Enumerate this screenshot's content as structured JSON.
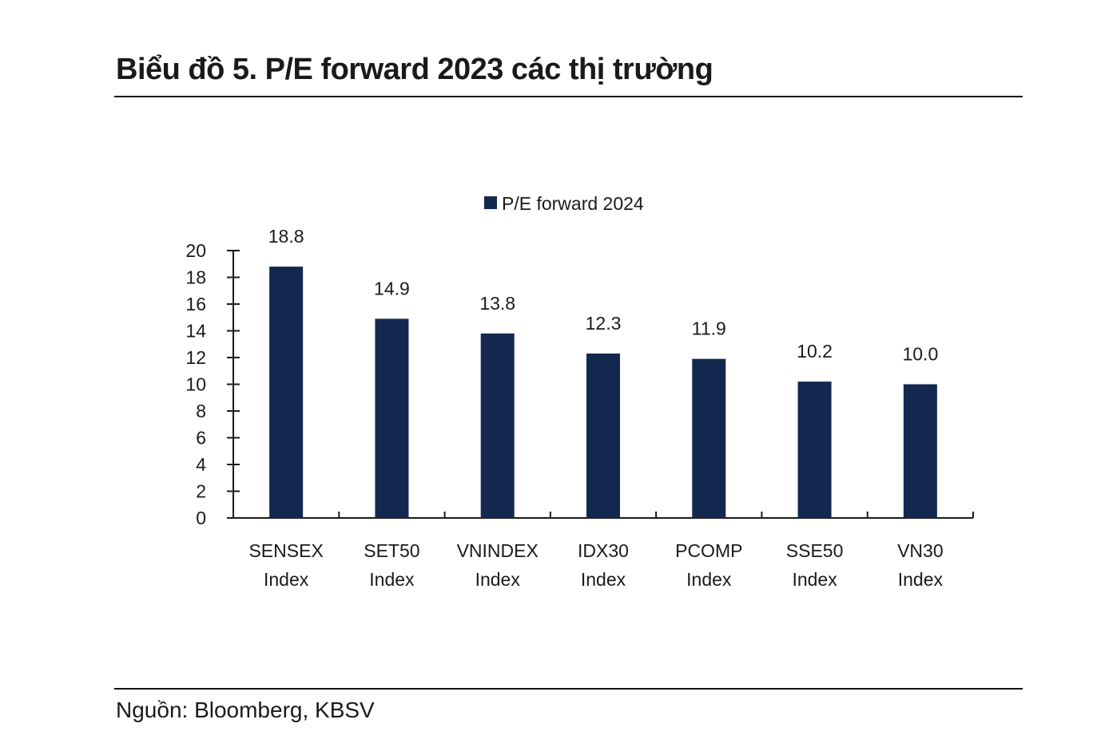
{
  "header": {
    "title": "Biểu đồ 5. P/E forward 2023 các thị trường"
  },
  "footer": {
    "source": "Nguồn: Bloomberg, KBSV"
  },
  "colors": {
    "bar": "#12284f",
    "axis": "#1a1a1a"
  },
  "chart_data": {
    "type": "bar",
    "title": "",
    "legend": {
      "position": "top-center",
      "entries": [
        "P/E forward 2024"
      ]
    },
    "categories": [
      [
        "SENSEX",
        "Index"
      ],
      [
        "SET50",
        "Index"
      ],
      [
        "VNINDEX",
        "Index"
      ],
      [
        "IDX30",
        "Index"
      ],
      [
        "PCOMP",
        "Index"
      ],
      [
        "SSE50",
        "Index"
      ],
      [
        "VN30",
        "Index"
      ]
    ],
    "series": [
      {
        "name": "P/E forward 2024",
        "values": [
          18.8,
          14.9,
          13.8,
          12.3,
          11.9,
          10.2,
          10.0
        ]
      }
    ],
    "data_labels": [
      "18.8",
      "14.9",
      "13.8",
      "12.3",
      "11.9",
      "10.2",
      "10.0"
    ],
    "ylim": [
      0,
      20
    ],
    "yticks": [
      0,
      2,
      4,
      6,
      8,
      10,
      12,
      14,
      16,
      18,
      20
    ],
    "xlabel": "",
    "ylabel": "",
    "grid": false
  }
}
